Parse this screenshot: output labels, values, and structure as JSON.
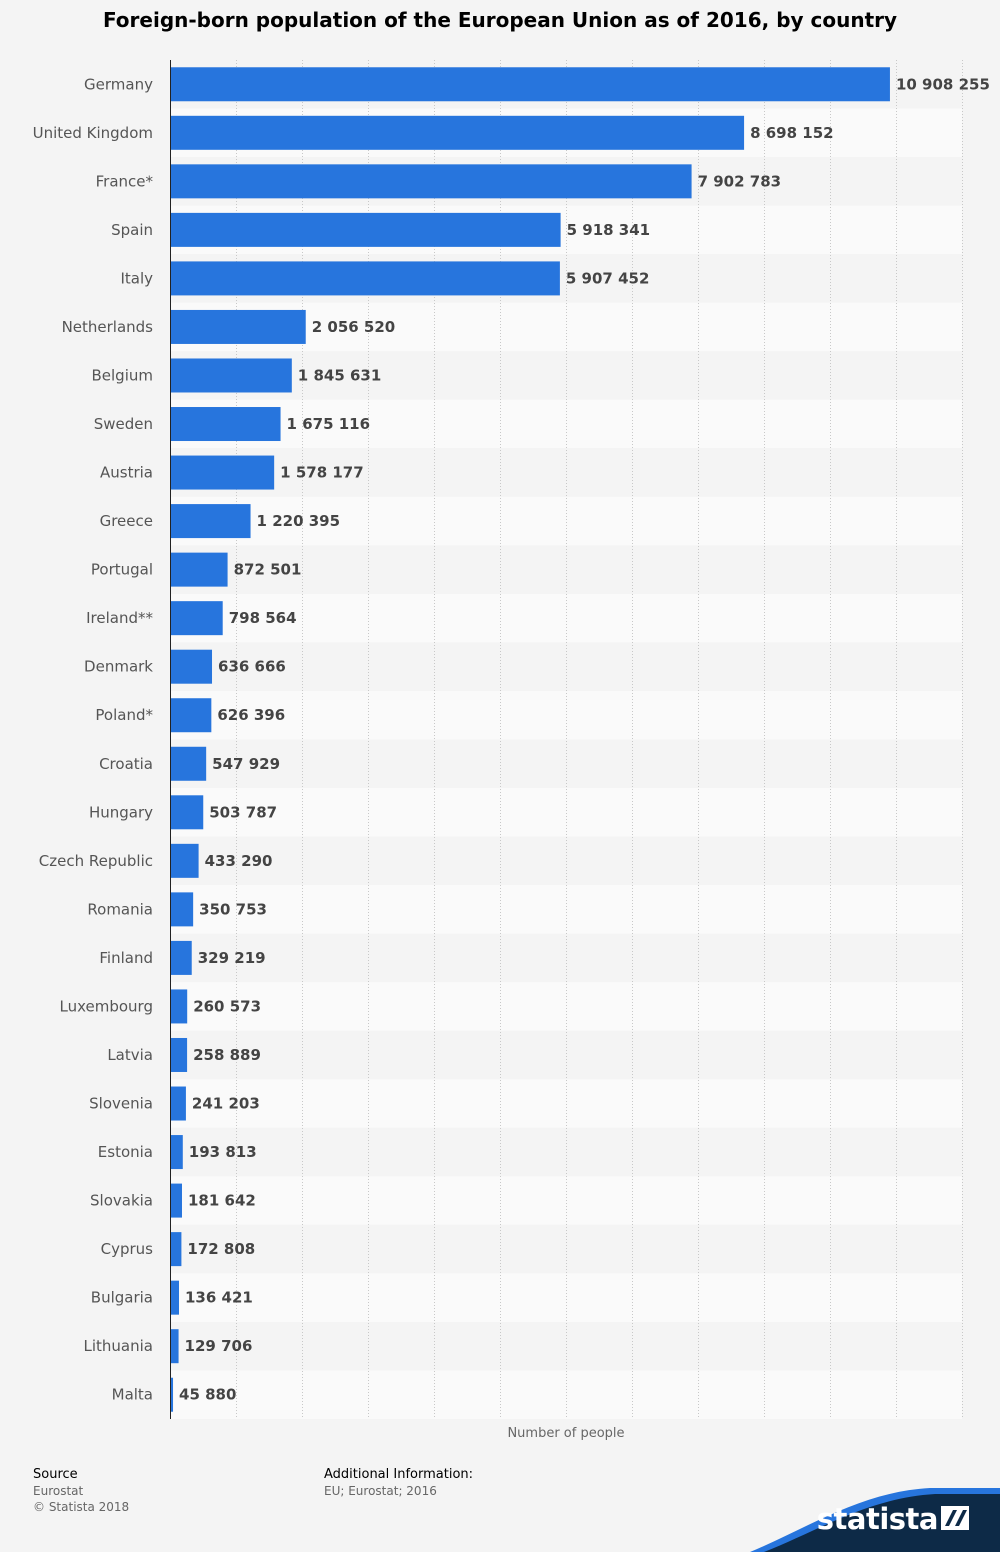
{
  "chart_data": {
    "type": "bar",
    "orientation": "horizontal",
    "title": "Foreign-born population of the European Union as of 2016, by country",
    "xlabel": "Number of people",
    "ylabel": "",
    "xlim": [
      0,
      12000000
    ],
    "grid": true,
    "categories": [
      "Germany",
      "United Kingdom",
      "France*",
      "Spain",
      "Italy",
      "Netherlands",
      "Belgium",
      "Sweden",
      "Austria",
      "Greece",
      "Portugal",
      "Ireland**",
      "Denmark",
      "Poland*",
      "Croatia",
      "Hungary",
      "Czech Republic",
      "Romania",
      "Finland",
      "Luxembourg",
      "Latvia",
      "Slovenia",
      "Estonia",
      "Slovakia",
      "Cyprus",
      "Bulgaria",
      "Lithuania",
      "Malta"
    ],
    "values": [
      10908255,
      8698152,
      7902783,
      5918341,
      5907452,
      2056520,
      1845631,
      1675116,
      1578177,
      1220395,
      872501,
      798564,
      636666,
      626396,
      547929,
      503787,
      433290,
      350753,
      329219,
      260573,
      258889,
      241203,
      193813,
      181642,
      172808,
      136421,
      129706,
      45880
    ],
    "value_labels": [
      "10 908 255",
      "8 698 152",
      "7 902 783",
      "5 918 341",
      "5 907 452",
      "2 056 520",
      "1 845 631",
      "1 675 116",
      "1 578 177",
      "1 220 395",
      "872 501",
      "798 564",
      "636 666",
      "626 396",
      "547 929",
      "503 787",
      "433 290",
      "350 753",
      "329 219",
      "260 573",
      "258 889",
      "241 203",
      "193 813",
      "181 642",
      "172 808",
      "136 421",
      "129 706",
      "45 880"
    ],
    "bar_color": "#2775dd"
  },
  "footer": {
    "source_heading": "Source",
    "source_lines": [
      "Eurostat",
      "© Statista 2018"
    ],
    "info_heading": "Additional Information:",
    "info_lines": [
      "EU; Eurostat; 2016"
    ]
  },
  "brand": {
    "name": "statista",
    "color": "#0d2a47",
    "accent": "#2775dd"
  }
}
